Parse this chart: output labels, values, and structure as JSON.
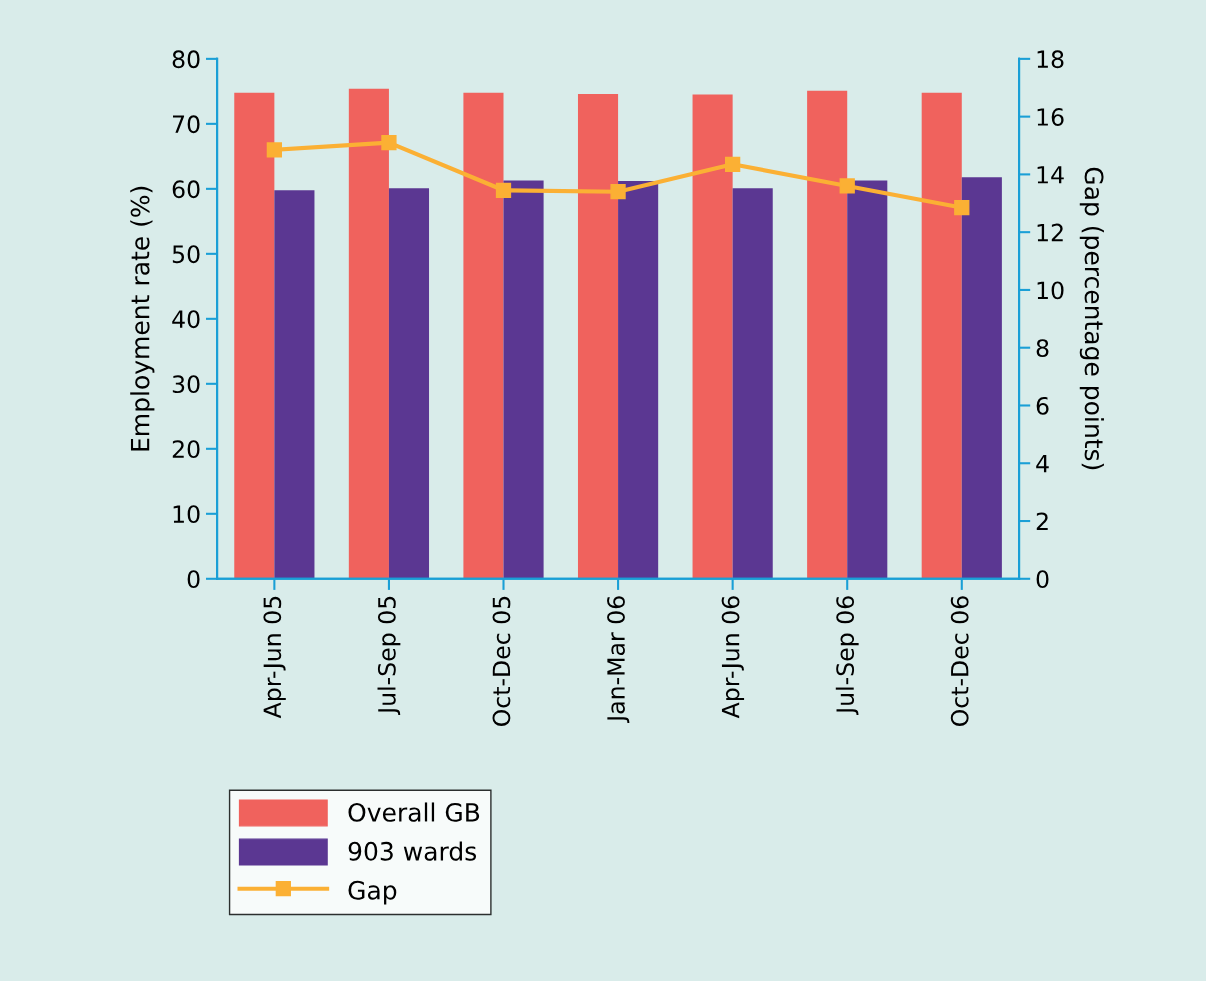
{
  "chart_data": {
    "type": "bar",
    "ylabel": "Employment rate (%)",
    "y2label": "Gap (percentage points)",
    "categories": [
      "Apr-Jun 05",
      "Jul-Sep 05",
      "Oct-Dec 05",
      "Jan-Mar 06",
      "Apr-Jun 06",
      "Jul-Sep 06",
      "Oct-Dec 06"
    ],
    "series": [
      {
        "name": "Overall GB",
        "color": "#f0625d",
        "values": [
          74.8,
          75.4,
          74.8,
          74.6,
          74.5,
          75.1,
          74.8
        ]
      },
      {
        "name": "903 wards",
        "color": "#5b3792",
        "values": [
          59.8,
          60.1,
          61.3,
          61.2,
          60.1,
          61.3,
          61.8
        ]
      },
      {
        "name": "Gap",
        "type": "line",
        "axis": "y2",
        "color": "#fbb034",
        "marker": "square",
        "values": [
          14.85,
          15.1,
          13.45,
          13.4,
          14.35,
          13.6,
          12.85
        ]
      }
    ],
    "ylim": [
      0,
      80
    ],
    "yticks": [
      0,
      10,
      20,
      30,
      40,
      50,
      60,
      70,
      80
    ],
    "y2lim": [
      0,
      18
    ],
    "y2ticks": [
      0,
      2,
      4,
      6,
      8,
      10,
      12,
      14,
      16,
      18
    ],
    "grid": false,
    "legend": "bottom left"
  }
}
